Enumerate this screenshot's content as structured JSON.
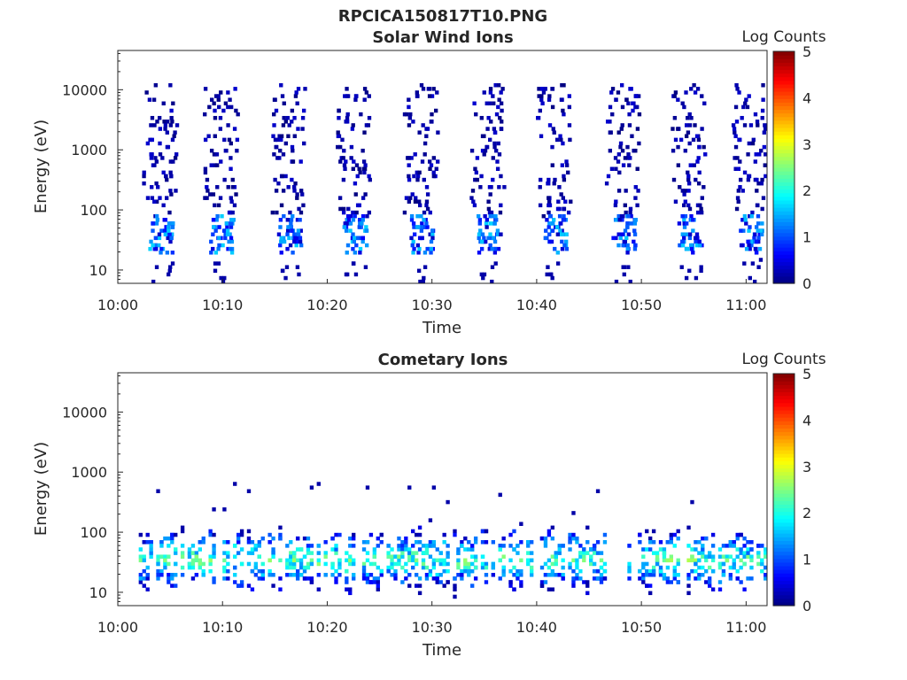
{
  "figure_title": "RPCICA150817T10.PNG",
  "chart_data": [
    {
      "type": "heatmap",
      "title": "Solar Wind Ions",
      "xlabel": "Time",
      "ylabel": "Energy (eV)",
      "yscale": "log",
      "xlim": [
        "10:00",
        "11:02"
      ],
      "ylim": [
        6,
        45000
      ],
      "x_ticks": [
        "10:00",
        "10:10",
        "10:20",
        "10:30",
        "10:40",
        "10:50",
        "11:00"
      ],
      "y_ticks": [
        "10",
        "100",
        "1000",
        "10000"
      ],
      "colorbar": {
        "label": "Log Counts",
        "min": 0,
        "max": 5,
        "ticks": [
          "0",
          "1",
          "2",
          "3",
          "4",
          "5"
        ],
        "colormap": "jet"
      },
      "bursts_start_min": [
        2.3,
        8.1,
        14.6,
        20.8,
        27.2,
        33.6,
        39.9,
        46.5,
        52.8,
        58.6
      ],
      "sparse_energy_range_eV": [
        80,
        13000
      ],
      "core_energy_range_eV": [
        20,
        80
      ],
      "core_log_counts": [
        0.7,
        1.4
      ],
      "sparse_log_counts": [
        0,
        0.4
      ]
    },
    {
      "type": "heatmap",
      "title": "Cometary Ions",
      "xlabel": "Time",
      "ylabel": "Energy (eV)",
      "yscale": "log",
      "xlim": [
        "10:00",
        "11:02"
      ],
      "ylim": [
        6,
        45000
      ],
      "x_ticks": [
        "10:00",
        "10:10",
        "10:20",
        "10:30",
        "10:40",
        "10:50",
        "11:00"
      ],
      "y_ticks": [
        "10",
        "100",
        "1000",
        "10000"
      ],
      "colorbar": {
        "label": "Log Counts",
        "min": 0,
        "max": 5,
        "ticks": [
          "0",
          "1",
          "2",
          "3",
          "4",
          "5"
        ],
        "colormap": "jet"
      },
      "band_time_range_min": [
        2.0,
        62.0
      ],
      "band_energy_range_eV": [
        8,
        200
      ],
      "band_peak_energy_eV": 35,
      "band_peak_log_counts": 2.8,
      "gap_min": [
        46.5,
        48.6
      ]
    }
  ]
}
